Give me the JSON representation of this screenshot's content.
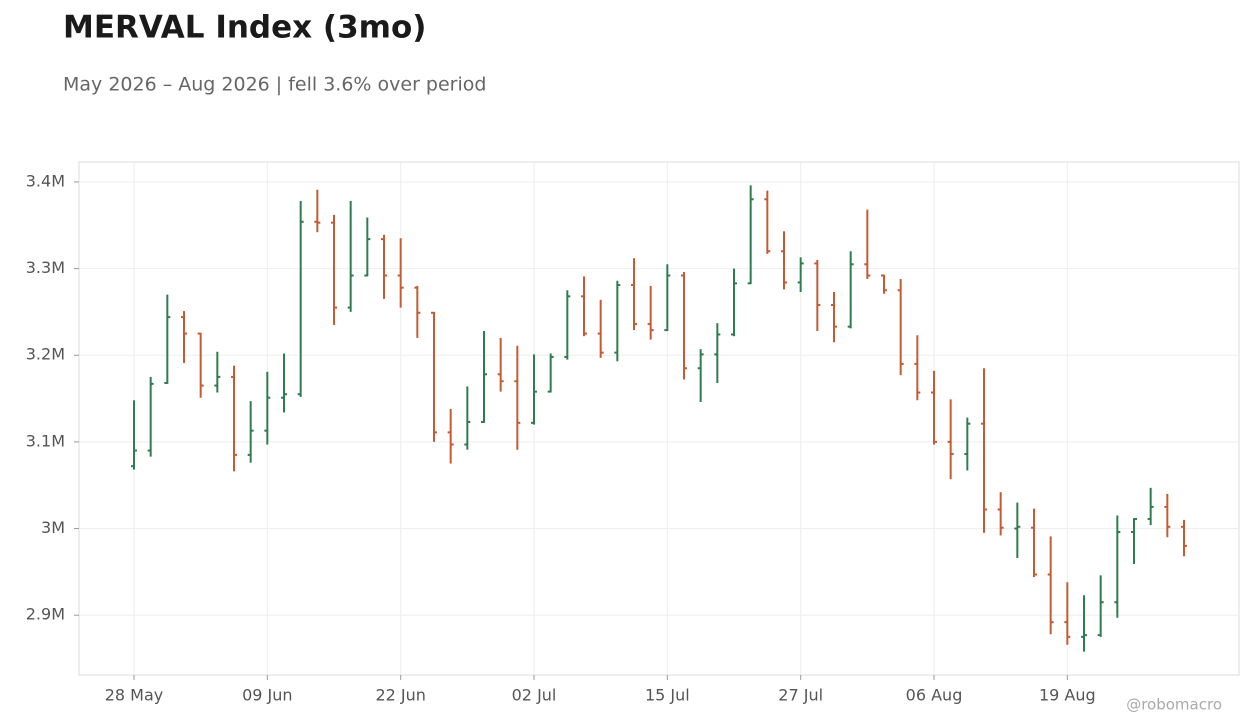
{
  "chart_data": {
    "type": "ohlc",
    "title": "MERVAL Index (3mo)",
    "subtitle": "May 2026 – Aug 2026 | fell 3.6% over period",
    "watermark": "@robomacro",
    "categories": [
      "28 May",
      null,
      null,
      null,
      null,
      null,
      null,
      null,
      "09 Jun",
      null,
      null,
      null,
      null,
      null,
      null,
      null,
      "22 Jun",
      null,
      null,
      null,
      null,
      null,
      null,
      null,
      "02 Jul",
      null,
      null,
      null,
      null,
      null,
      null,
      null,
      "15 Jul",
      null,
      null,
      null,
      null,
      null,
      null,
      null,
      "27 Jul",
      null,
      null,
      null,
      null,
      null,
      null,
      null,
      "06 Aug",
      null,
      null,
      null,
      null,
      null,
      null,
      null,
      "19 Aug",
      null,
      null,
      null,
      null,
      null,
      null,
      null
    ],
    "open": [
      3072000,
      3090000,
      3168000,
      3244000,
      3225000,
      3165000,
      3175000,
      3085000,
      3113000,
      3151000,
      3155000,
      3354000,
      3353000,
      3255000,
      3292000,
      3334000,
      3292000,
      3278000,
      3249000,
      3111000,
      3097000,
      3123000,
      3178000,
      3170000,
      3122000,
      3158000,
      3198000,
      3268000,
      3225000,
      3203000,
      3281000,
      3236000,
      3229000,
      3292000,
      3185000,
      3201000,
      3224000,
      3283000,
      3380000,
      3320000,
      3284000,
      3306000,
      3258000,
      3233000,
      3305000,
      3292000,
      3275000,
      3190000,
      3157000,
      3100000,
      3086000,
      3121000,
      3022000,
      3000000,
      3001000,
      2947000,
      2892000,
      2875000,
      2877000,
      2915000,
      2996000,
      3011000,
      3025000,
      3002000
    ],
    "high": [
      3148000,
      3175000,
      3270000,
      3251000,
      3226000,
      3204000,
      3188000,
      3147000,
      3181000,
      3202000,
      3378000,
      3391000,
      3362000,
      3378000,
      3359000,
      3339000,
      3335000,
      3280000,
      3250000,
      3138000,
      3164000,
      3228000,
      3220000,
      3211000,
      3201000,
      3202000,
      3275000,
      3291000,
      3264000,
      3286000,
      3312000,
      3280000,
      3305000,
      3296000,
      3207000,
      3237000,
      3300000,
      3396000,
      3390000,
      3343000,
      3313000,
      3310000,
      3273000,
      3320000,
      3368000,
      3293000,
      3288000,
      3223000,
      3182000,
      3149000,
      3128000,
      3185000,
      3042000,
      3030000,
      3023000,
      2991000,
      2938000,
      2923000,
      2946000,
      3015000,
      3012000,
      3047000,
      3040000,
      3010000
    ],
    "low": [
      3068000,
      3083000,
      3167000,
      3191000,
      3151000,
      3157000,
      3066000,
      3076000,
      3097000,
      3134000,
      3152000,
      3342000,
      3235000,
      3250000,
      3291000,
      3265000,
      3255000,
      3220000,
      3100000,
      3075000,
      3091000,
      3122000,
      3158000,
      3091000,
      3120000,
      3157000,
      3195000,
      3222000,
      3197000,
      3193000,
      3229000,
      3218000,
      3228000,
      3172000,
      3146000,
      3168000,
      3222000,
      3282000,
      3317000,
      3276000,
      3273000,
      3228000,
      3215000,
      3231000,
      3288000,
      3271000,
      3177000,
      3148000,
      3097000,
      3057000,
      3067000,
      2995000,
      2992000,
      2966000,
      2944000,
      2878000,
      2866000,
      2858000,
      2875000,
      2897000,
      2959000,
      3004000,
      2990000,
      2968000
    ],
    "close": [
      3090000,
      3167000,
      3244000,
      3225000,
      3165000,
      3175000,
      3085000,
      3113000,
      3151000,
      3155000,
      3354000,
      3353000,
      3255000,
      3292000,
      3334000,
      3292000,
      3278000,
      3249000,
      3111000,
      3097000,
      3123000,
      3178000,
      3170000,
      3122000,
      3158000,
      3198000,
      3268000,
      3225000,
      3203000,
      3281000,
      3236000,
      3229000,
      3292000,
      3185000,
      3201000,
      3224000,
      3283000,
      3380000,
      3320000,
      3284000,
      3306000,
      3258000,
      3233000,
      3305000,
      3292000,
      3275000,
      3190000,
      3157000,
      3100000,
      3086000,
      3121000,
      3022000,
      3001000,
      3002000,
      2947000,
      2892000,
      2875000,
      2877000,
      2915000,
      2996000,
      3011000,
      3025000,
      3002000,
      2980000
    ],
    "up_color": "#2e7d4f",
    "down_color": "#c65a32",
    "ylim": [
      2831000,
      3423000
    ],
    "yticks": [
      {
        "value": 2900000,
        "label": "2.9M"
      },
      {
        "value": 3000000,
        "label": "3M"
      },
      {
        "value": 3100000,
        "label": "3.1M"
      },
      {
        "value": 3200000,
        "label": "3.2M"
      },
      {
        "value": 3300000,
        "label": "3.3M"
      },
      {
        "value": 3400000,
        "label": "3.4M"
      }
    ],
    "grid": true
  }
}
